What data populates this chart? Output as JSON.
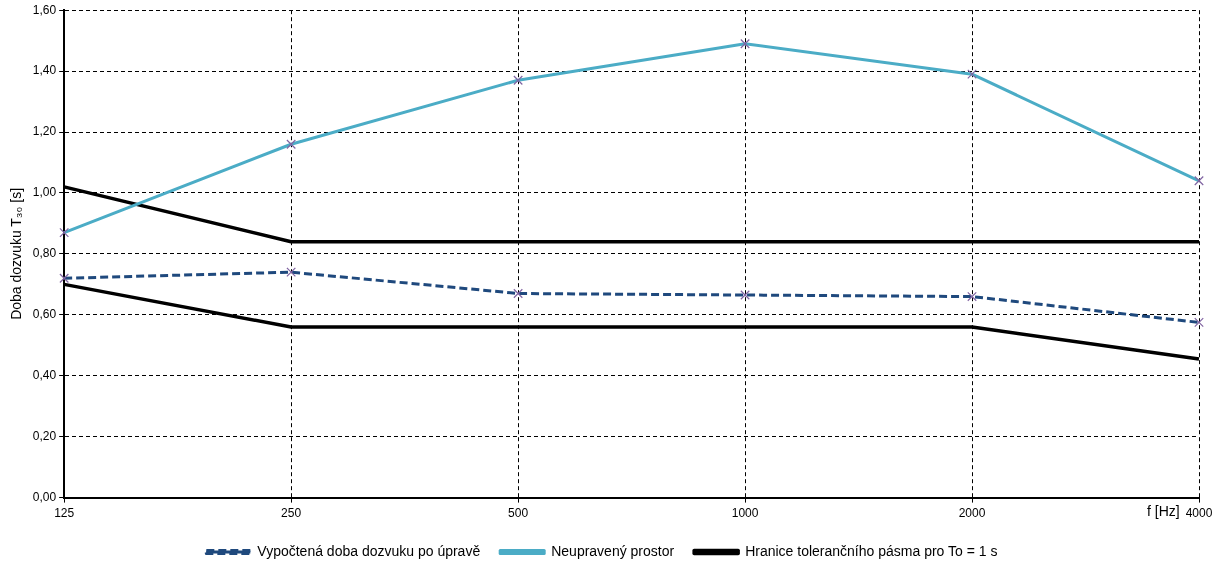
{
  "chart_data": {
    "type": "line",
    "xlabel": "f [Hz]",
    "ylabel": "Doba dozvuku T₃₀ [s]",
    "categories": [
      "125",
      "250",
      "500",
      "1000",
      "2000",
      "4000"
    ],
    "series": [
      {
        "name": "Vypočtená doba dozvuku po úpravě",
        "color": "#1f497d",
        "marker": "cross",
        "line_style": "dashed",
        "values": [
          0.72,
          0.74,
          0.67,
          0.665,
          0.66,
          0.575
        ]
      },
      {
        "name": "Neupravený prostor",
        "color": "#4bacc6",
        "marker": "cross",
        "line_style": "solid",
        "values": [
          0.87,
          1.16,
          1.37,
          1.49,
          1.39,
          1.04
        ]
      },
      {
        "name": "Hranice tolerančního pásma pro To = 1 s",
        "color": "#000000",
        "marker": "none",
        "line_style": "solid",
        "values": [
          1.02,
          0.84,
          0.84,
          0.84,
          0.84,
          0.84
        ]
      },
      {
        "color": "#000000",
        "marker": "none",
        "line_style": "solid",
        "values": [
          0.7,
          0.56,
          0.56,
          0.56,
          0.56,
          0.455
        ]
      }
    ],
    "ylim": [
      0,
      1.6
    ],
    "yticks": [
      {
        "value": 0,
        "label": "0,00"
      },
      {
        "value": 0.2,
        "label": "0,20"
      },
      {
        "value": 0.4,
        "label": "0,40"
      },
      {
        "value": 0.6,
        "label": "0,60"
      },
      {
        "value": 0.8,
        "label": "0,80"
      },
      {
        "value": 1,
        "label": "1,00"
      },
      {
        "value": 1.2,
        "label": "1,20"
      },
      {
        "value": 1.4,
        "label": "1,40"
      },
      {
        "value": 1.6,
        "label": "1,60"
      }
    ],
    "grid": true,
    "legend": "bottom"
  }
}
